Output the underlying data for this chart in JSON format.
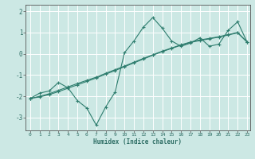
{
  "title": "",
  "xlabel": "Humidex (Indice chaleur)",
  "ylabel": "",
  "bg_color": "#cce8e4",
  "line_color": "#2e7d6e",
  "grid_color": "#b0d8d2",
  "xlim": [
    -0.5,
    23.3
  ],
  "ylim": [
    -3.6,
    2.3
  ],
  "xticks": [
    0,
    1,
    2,
    3,
    4,
    5,
    6,
    7,
    8,
    9,
    10,
    11,
    12,
    13,
    14,
    15,
    16,
    17,
    18,
    19,
    20,
    21,
    22,
    23
  ],
  "yticks": [
    -3,
    -2,
    -1,
    0,
    1,
    2
  ],
  "curve1_x": [
    0,
    1,
    2,
    3,
    4,
    5,
    6,
    7,
    8,
    9,
    10,
    11,
    12,
    13,
    14,
    15,
    16,
    17,
    18,
    19,
    20,
    21,
    22,
    23
  ],
  "curve1_y": [
    -2.1,
    -1.85,
    -1.75,
    -1.35,
    -1.6,
    -2.2,
    -2.55,
    -3.35,
    -2.5,
    -1.8,
    0.05,
    0.6,
    1.25,
    1.7,
    1.2,
    0.6,
    0.35,
    0.5,
    0.75,
    0.35,
    0.45,
    1.1,
    1.5,
    0.55
  ],
  "curve2_x": [
    0,
    1,
    2,
    3,
    4,
    5,
    6,
    7,
    8,
    9,
    10,
    11,
    12,
    13,
    14,
    15,
    16,
    17,
    18,
    19,
    20,
    21,
    22,
    23
  ],
  "curve2_y": [
    -2.1,
    -2.0,
    -1.88,
    -1.72,
    -1.56,
    -1.4,
    -1.25,
    -1.1,
    -0.92,
    -0.75,
    -0.58,
    -0.4,
    -0.22,
    -0.05,
    0.12,
    0.27,
    0.42,
    0.55,
    0.65,
    0.72,
    0.8,
    0.9,
    1.0,
    0.55
  ],
  "curve3_x": [
    0,
    1,
    2,
    3,
    4,
    5,
    6,
    7,
    8,
    9,
    10,
    11,
    12,
    13,
    14,
    15,
    16,
    17,
    18,
    19,
    20,
    21,
    22,
    23
  ],
  "curve3_y": [
    -2.1,
    -2.03,
    -1.92,
    -1.78,
    -1.62,
    -1.46,
    -1.3,
    -1.14,
    -0.96,
    -0.79,
    -0.61,
    -0.43,
    -0.25,
    -0.07,
    0.1,
    0.25,
    0.4,
    0.53,
    0.62,
    0.7,
    0.78,
    0.88,
    0.98,
    0.55
  ]
}
